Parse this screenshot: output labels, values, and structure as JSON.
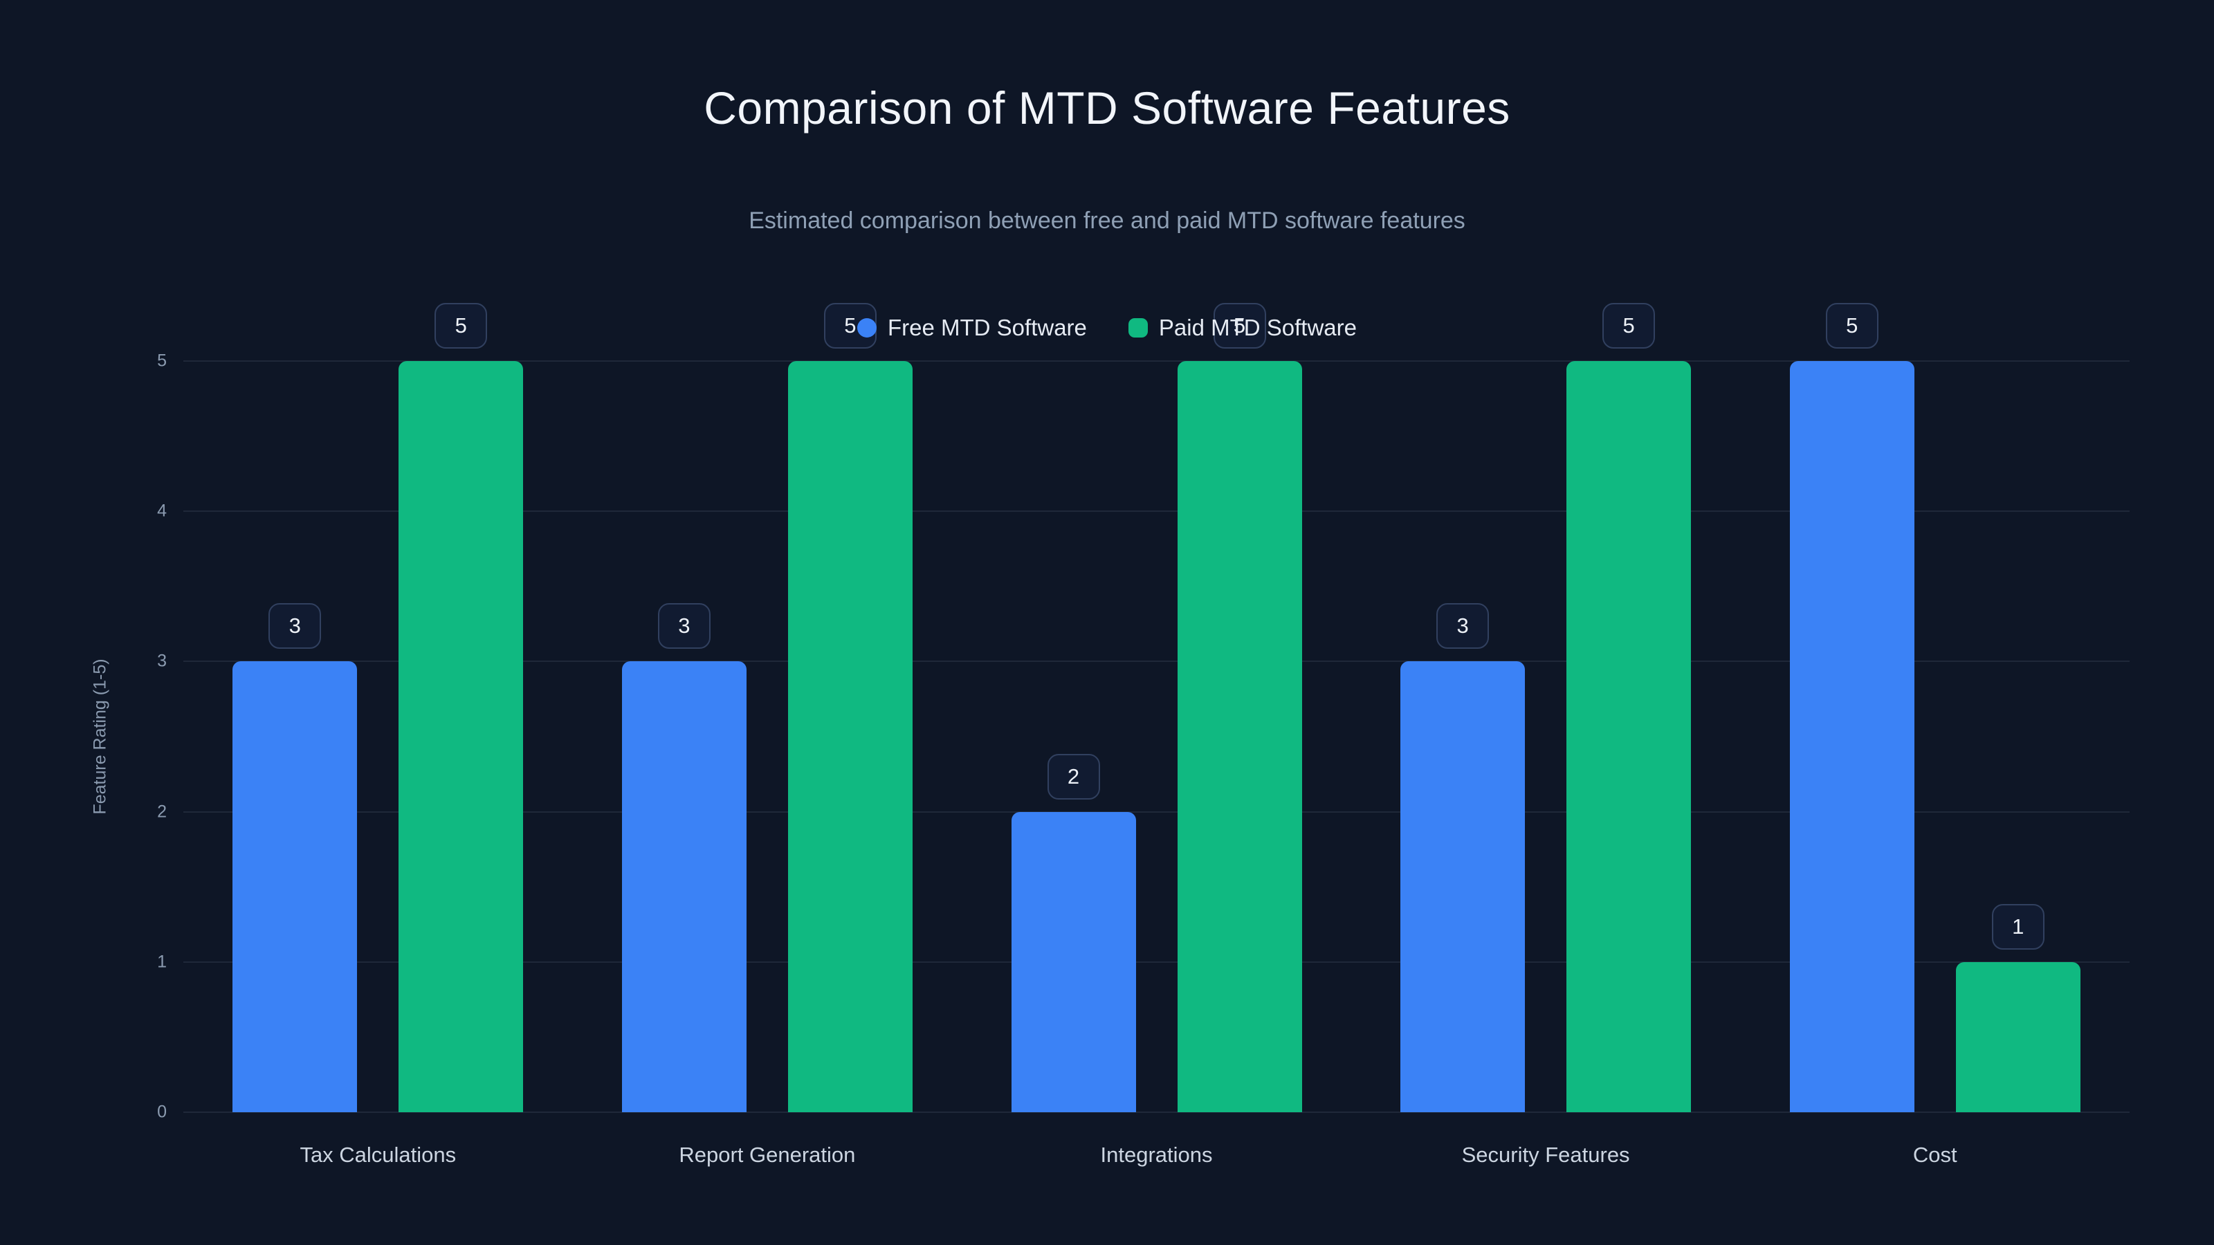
{
  "title": "Comparison of MTD Software Features",
  "subtitle": "Estimated comparison between free and paid MTD software features",
  "colors": {
    "background": "#0e1626",
    "free_series": "#3b82f6",
    "paid_series": "#10b981",
    "grid": "rgba(148,163,184,0.13)"
  },
  "legend": {
    "items": [
      {
        "label": "Free MTD Software",
        "color": "#3b82f6",
        "shape": "circle"
      },
      {
        "label": "Paid MTD Software",
        "color": "#10b981",
        "shape": "rounded"
      }
    ]
  },
  "chart_data": {
    "type": "bar",
    "categories": [
      "Tax Calculations",
      "Report Generation",
      "Integrations",
      "Security Features",
      "Cost"
    ],
    "series": [
      {
        "name": "Free MTD Software",
        "color": "#3b82f6",
        "values": [
          3,
          3,
          2,
          3,
          5
        ]
      },
      {
        "name": "Paid MTD Software",
        "color": "#10b981",
        "values": [
          5,
          5,
          5,
          5,
          1
        ]
      }
    ],
    "title": "Comparison of MTD Software Features",
    "subtitle": "Estimated comparison between free and paid MTD software features",
    "xlabel": "",
    "ylabel": "Feature Rating (1-5)",
    "ylim": [
      0,
      5
    ],
    "yticks": [
      0,
      1,
      2,
      3,
      4,
      5
    ],
    "grid": true,
    "legend_position": "top-center",
    "value_labels": true
  }
}
